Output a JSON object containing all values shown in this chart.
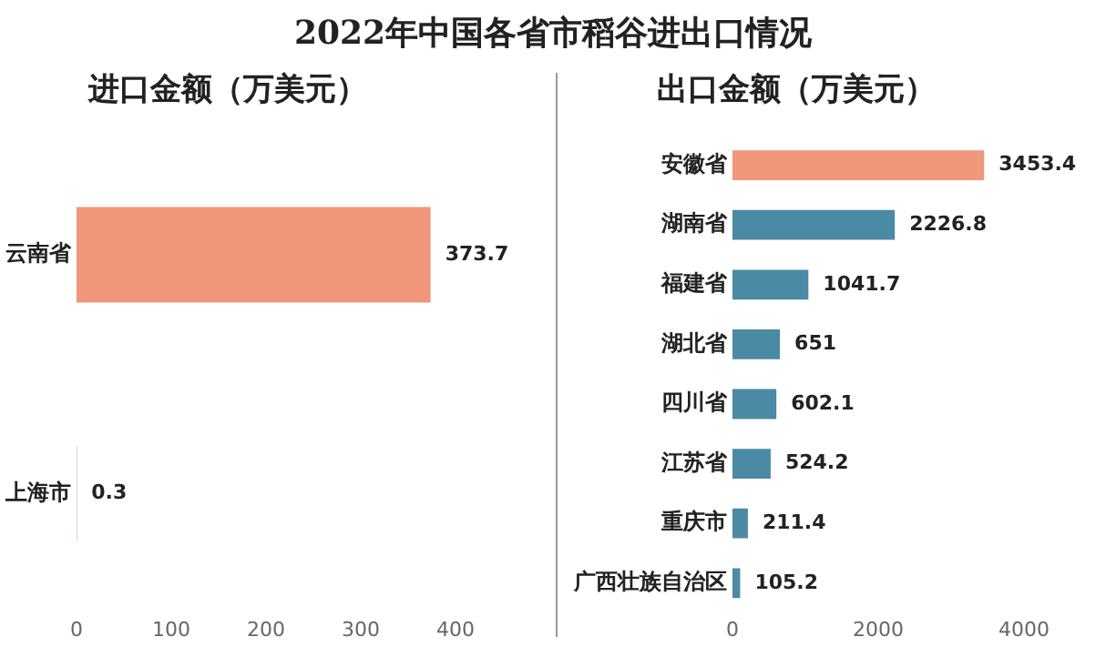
{
  "chart_data": [
    {
      "type": "bar",
      "orientation": "horizontal",
      "title": "2022年中国各省市稻谷进出口情况",
      "subtitle": "进口金额（万美元）",
      "categories": [
        "云南省",
        "上海市"
      ],
      "values": [
        373.7,
        0.3
      ],
      "colors": [
        "#f0967a",
        "#4a8aa5"
      ],
      "xlim": [
        0,
        400
      ],
      "xticks": [
        0,
        100,
        200,
        300,
        400
      ],
      "grid": false,
      "legend": false,
      "data_labels": true
    },
    {
      "type": "bar",
      "orientation": "horizontal",
      "subtitle": "出口金额（万美元）",
      "categories": [
        "安徽省",
        "湖南省",
        "福建省",
        "湖北省",
        "四川省",
        "江苏省",
        "重庆市",
        "广西壮族自治区"
      ],
      "values": [
        3453.4,
        2226.8,
        1041.7,
        651,
        602.1,
        524.2,
        211.4,
        105.2
      ],
      "colors": [
        "#f0967a",
        "#4a8aa5",
        "#4a8aa5",
        "#4a8aa5",
        "#4a8aa5",
        "#4a8aa5",
        "#4a8aa5",
        "#4a8aa5"
      ],
      "xlim": [
        0,
        4000
      ],
      "xticks": [
        0,
        2000,
        4000
      ],
      "grid": false,
      "legend": false,
      "data_labels": true
    }
  ]
}
